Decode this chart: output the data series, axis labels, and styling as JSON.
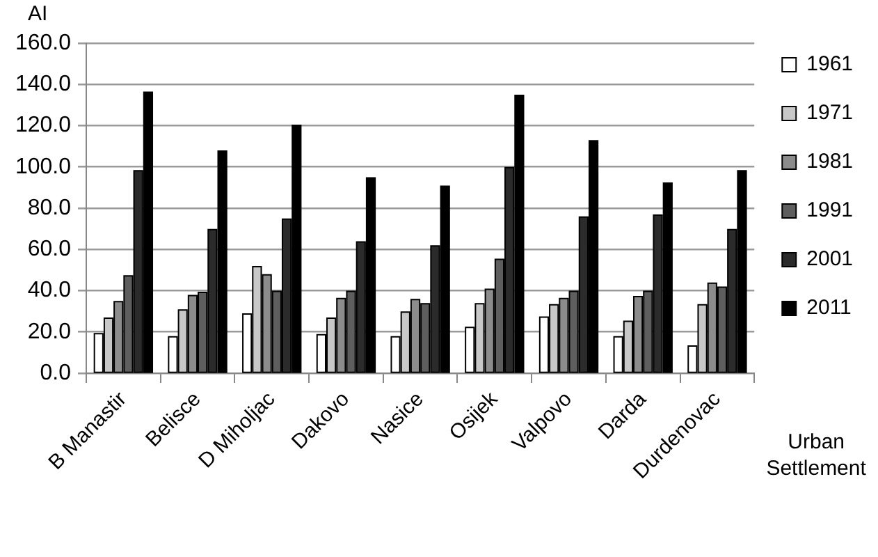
{
  "chart_data": {
    "type": "bar",
    "ylabel": "AI",
    "xlabel": "Urban Settlement",
    "categories": [
      "B Manastir",
      "Belisce",
      "D Miholjac",
      "Dakovo",
      "Nasice",
      "Osijek",
      "Valpovo",
      "Darda",
      "Durdenovac"
    ],
    "series": [
      {
        "name": "1961",
        "color": "#ffffff",
        "values": [
          19.5,
          18,
          29,
          19,
          18,
          22.5,
          27.5,
          18,
          13.5
        ]
      },
      {
        "name": "1971",
        "color": "#c8c8c8",
        "values": [
          27,
          31,
          52,
          27,
          30,
          34,
          33.5,
          25.5,
          33.5
        ]
      },
      {
        "name": "1981",
        "color": "#8c8c8c",
        "values": [
          35,
          38,
          48,
          36.5,
          36,
          41,
          36.5,
          37.5,
          44
        ]
      },
      {
        "name": "1991",
        "color": "#5e5e5e",
        "values": [
          47.5,
          39.5,
          40,
          40,
          34,
          55.5,
          40,
          40,
          42
        ]
      },
      {
        "name": "2001",
        "color": "#2b2b2b",
        "values": [
          98.5,
          70,
          75,
          64,
          62,
          100,
          76,
          77,
          70
        ]
      },
      {
        "name": "2011",
        "color": "#000000",
        "values": [
          136.5,
          108,
          120.5,
          95,
          91,
          135,
          113,
          92.5,
          98.5
        ]
      }
    ],
    "ylim": [
      0,
      160
    ],
    "yticks": [
      {
        "value": 0,
        "label": "0.0"
      },
      {
        "value": 20,
        "label": "20.0"
      },
      {
        "value": 40,
        "label": "40.0"
      },
      {
        "value": 60,
        "label": "60.0"
      },
      {
        "value": 80,
        "label": "80.0"
      },
      {
        "value": 100,
        "label": "100.0"
      },
      {
        "value": 120,
        "label": "120.0"
      },
      {
        "value": 140,
        "label": "140.0"
      },
      {
        "value": 160,
        "label": "160.0"
      }
    ],
    "grid": "y",
    "legend": "right"
  }
}
